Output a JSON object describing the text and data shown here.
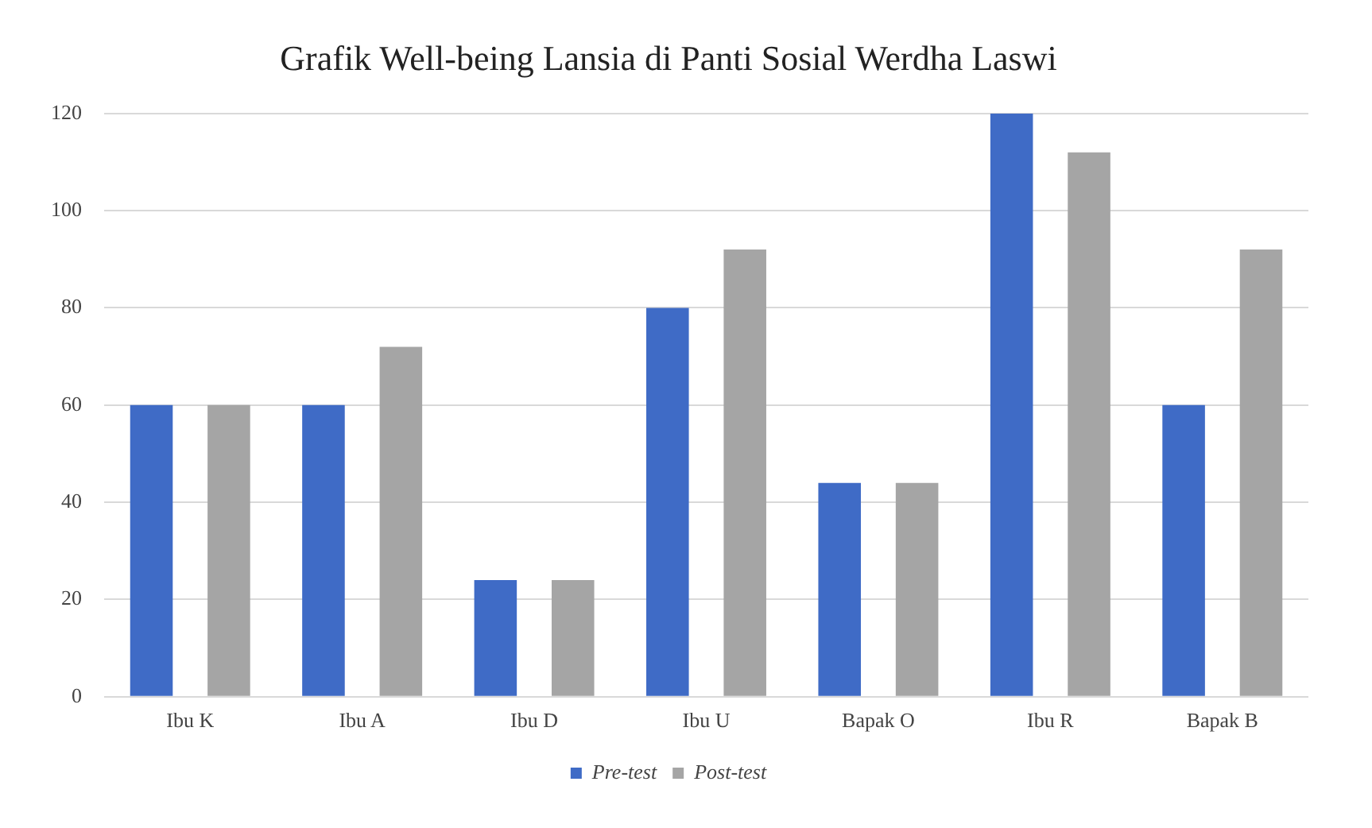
{
  "chart_data": {
    "type": "bar",
    "title": "Grafik Well-being Lansia di Panti Sosial Werdha Laswi",
    "categories": [
      "Ibu K",
      "Ibu A",
      "Ibu D",
      "Ibu U",
      "Bapak O",
      "Ibu R",
      "Bapak B"
    ],
    "series": [
      {
        "name": "Pre-test",
        "color": "#3f6bc6",
        "values": [
          60,
          60,
          24,
          80,
          44,
          120,
          60
        ]
      },
      {
        "name": "Post-test",
        "color": "#a5a5a5",
        "values": [
          60,
          72,
          24,
          92,
          44,
          112,
          92
        ]
      }
    ],
    "ylim": [
      0,
      120
    ],
    "yticks": [
      0,
      20,
      40,
      60,
      80,
      100,
      120
    ],
    "grid": "y",
    "legend": "bottom"
  }
}
